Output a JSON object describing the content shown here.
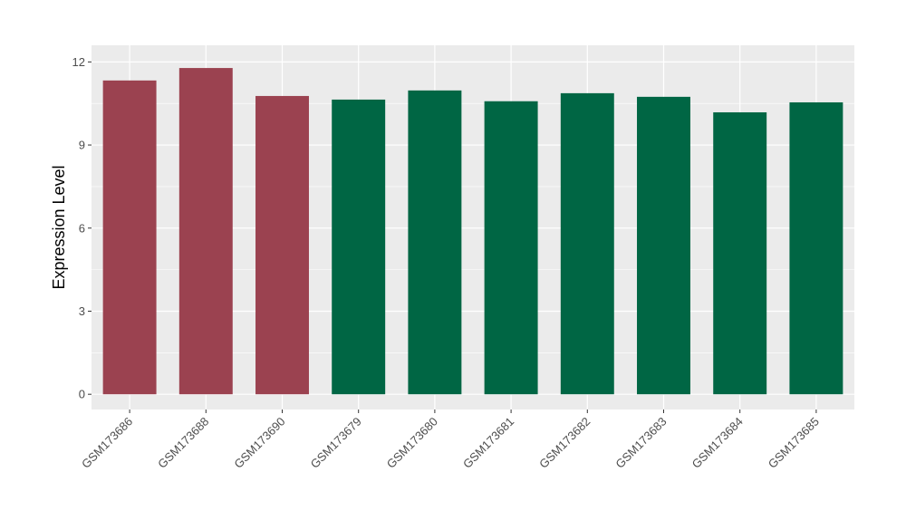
{
  "chart_data": {
    "type": "bar",
    "title": "",
    "xlabel": "",
    "ylabel": "Expression Level",
    "ylim": [
      -0.55,
      12.6
    ],
    "yticks": [
      0,
      3,
      6,
      9,
      12
    ],
    "grid": true,
    "categories": [
      "GSM173686",
      "GSM173688",
      "GSM173690",
      "GSM173679",
      "GSM173680",
      "GSM173681",
      "GSM173682",
      "GSM173683",
      "GSM173684",
      "GSM173685"
    ],
    "values": [
      11.33,
      11.78,
      10.77,
      10.64,
      10.97,
      10.58,
      10.87,
      10.74,
      10.18,
      10.54
    ],
    "bar_colors": [
      "#9b4250",
      "#9b4250",
      "#9b4250",
      "#006644",
      "#006644",
      "#006644",
      "#006644",
      "#006644",
      "#006644",
      "#006644"
    ],
    "panel_background": "#ebebeb",
    "gridline_color": "#ffffff"
  }
}
